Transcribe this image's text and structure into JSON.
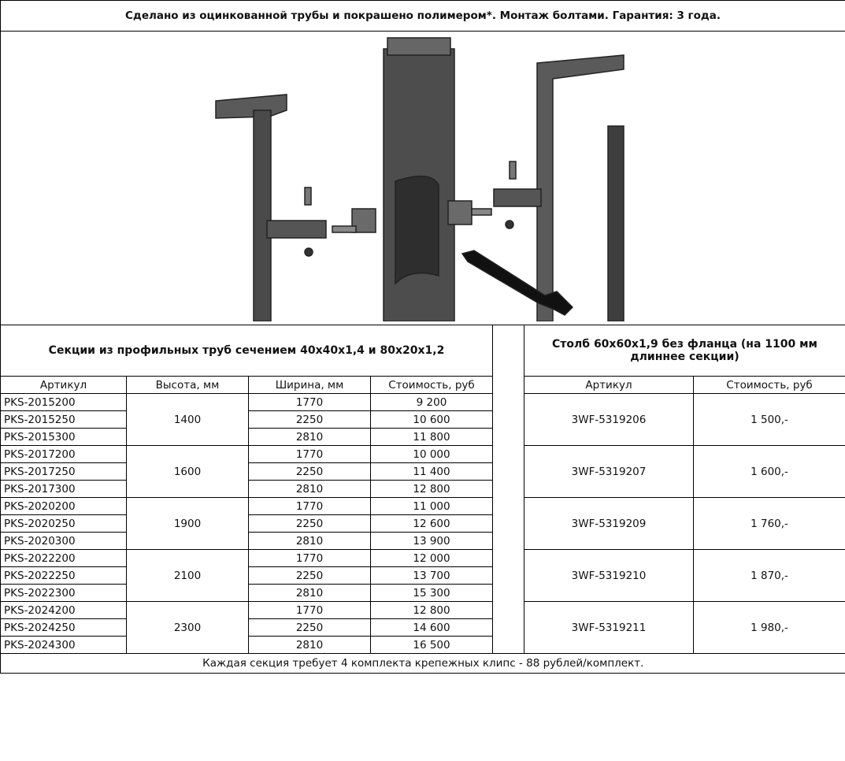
{
  "header": {
    "text": "Сделано из оцинкованной трубы и покрашено полимером*. Монтаж болтами. Гарантия: 3 года."
  },
  "table": {
    "title_left": "Секции из профильных труб сечением 40x40x1,4 и 80x20x1,2",
    "title_right": "Столб 60x60x1,9 без фланца (на 1100 мм длиннее секции)",
    "columns_left": [
      "Артикул",
      "Высота, мм",
      "Ширина, мм",
      "Стоимость, руб"
    ],
    "columns_right": [
      "Артикул",
      "Стоимость, руб"
    ],
    "groups": [
      {
        "height": "1400",
        "rows": [
          {
            "article": "PKS-2015200",
            "width": "1770",
            "price": "9 200"
          },
          {
            "article": "PKS-2015250",
            "width": "2250",
            "price": "10 600"
          },
          {
            "article": "PKS-2015300",
            "width": "2810",
            "price": "11 800"
          }
        ],
        "post_article": "3WF-5319206",
        "post_price": "1 500,-"
      },
      {
        "height": "1600",
        "rows": [
          {
            "article": "PKS-2017200",
            "width": "1770",
            "price": "10 000"
          },
          {
            "article": "PKS-2017250",
            "width": "2250",
            "price": "11 400"
          },
          {
            "article": "PKS-2017300",
            "width": "2810",
            "price": "12 800"
          }
        ],
        "post_article": "3WF-5319207",
        "post_price": "1 600,-"
      },
      {
        "height": "1900",
        "rows": [
          {
            "article": "PKS-2020200",
            "width": "1770",
            "price": "11 000"
          },
          {
            "article": "PKS-2020250",
            "width": "2250",
            "price": "12 600"
          },
          {
            "article": "PKS-2020300",
            "width": "2810",
            "price": "13 900"
          }
        ],
        "post_article": "3WF-5319209",
        "post_price": "1 760,-"
      },
      {
        "height": "2100",
        "rows": [
          {
            "article": "PKS-2022200",
            "width": "1770",
            "price": "12 000"
          },
          {
            "article": "PKS-2022250",
            "width": "2250",
            "price": "13 700"
          },
          {
            "article": "PKS-2022300",
            "width": "2810",
            "price": "15 300"
          }
        ],
        "post_article": "3WF-5319210",
        "post_price": "1 870,-"
      },
      {
        "height": "2300",
        "rows": [
          {
            "article": "PKS-2024200",
            "width": "1770",
            "price": "12 800"
          },
          {
            "article": "PKS-2024250",
            "width": "2250",
            "price": "14 600"
          },
          {
            "article": "PKS-2024300",
            "width": "2810",
            "price": "16 500"
          }
        ],
        "post_article": "3WF-5319211",
        "post_price": "1 980,-"
      }
    ],
    "footer": "Каждая секция требует 4 комплекта крепежных клипс - 88 рублей/комплект."
  }
}
